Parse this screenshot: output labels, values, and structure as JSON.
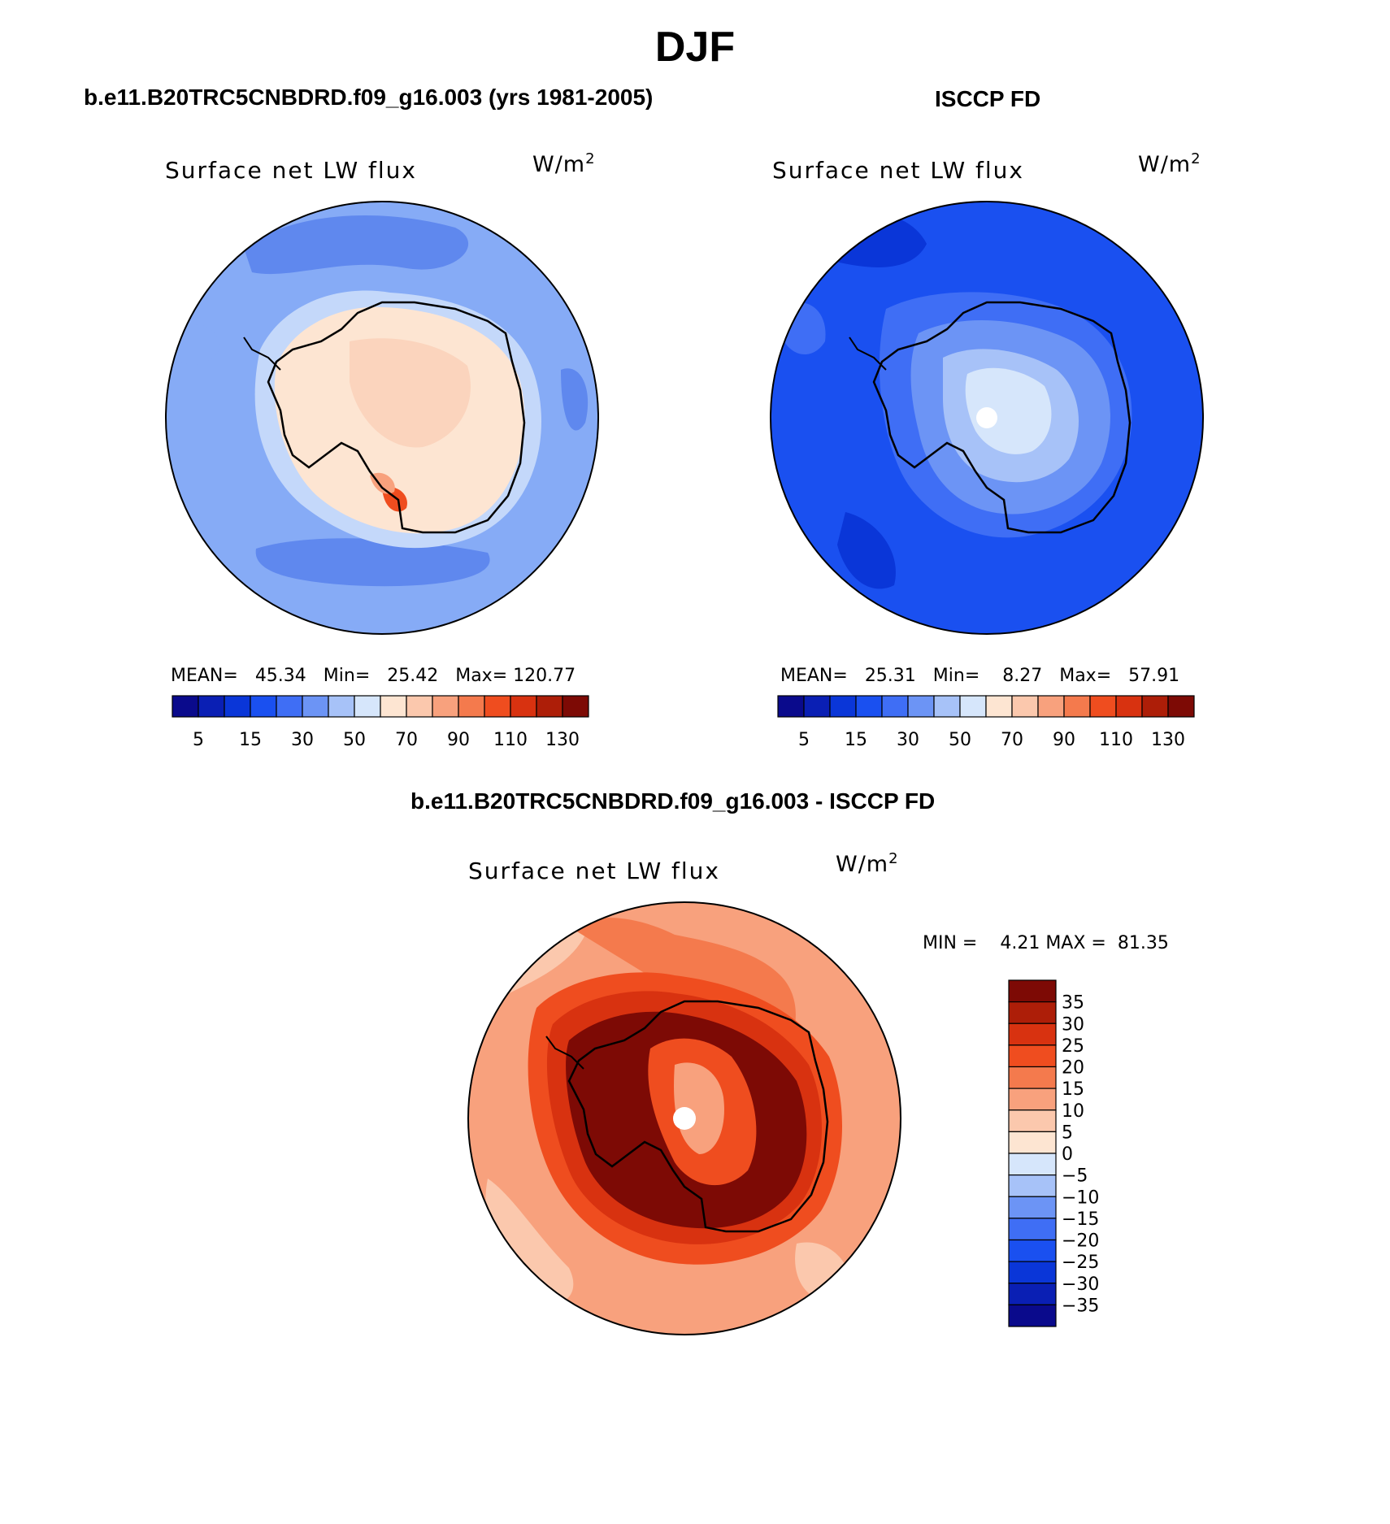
{
  "figure": {
    "title": "DJF",
    "panels": [
      {
        "heading": "b.e11.B20TRC5CNBDRD.f09_g16.003 (yrs 1981-2005)",
        "variable": "Surface net LW flux",
        "units": "W/m",
        "units_sup": "2",
        "stats": {
          "mean_label": "MEAN=",
          "mean": "45.34",
          "min_label": "Min=",
          "min": "25.42",
          "max_label": "Max=",
          "max": "120.77"
        }
      },
      {
        "heading": "ISCCP FD",
        "variable": "Surface net LW flux",
        "units": "W/m",
        "units_sup": "2",
        "stats": {
          "mean_label": "MEAN=",
          "mean": "25.31",
          "min_label": "Min=",
          "min": "8.27",
          "max_label": "Max=",
          "max": "57.91"
        }
      },
      {
        "heading": "b.e11.B20TRC5CNBDRD.f09_g16.003 - ISCCP FD",
        "variable": "Surface net LW flux",
        "units": "W/m",
        "units_sup": "2",
        "stats": {
          "min_label": "MIN =",
          "min": "4.21",
          "max_label": "MAX =",
          "max": "81.35"
        }
      }
    ],
    "colorbar_abs": {
      "colors": [
        "#0a0a8c",
        "#0a1fb4",
        "#0a36d8",
        "#1a50f0",
        "#3f6ef5",
        "#6c94f5",
        "#a7c2f8",
        "#d6e6fb",
        "#fde5d2",
        "#fbc8ad",
        "#f8a17d",
        "#f47a4d",
        "#ef4d1f",
        "#d83210",
        "#ad1e08",
        "#7d0a05"
      ],
      "tick_labels": [
        "5",
        "15",
        "30",
        "50",
        "70",
        "90",
        "110",
        "130"
      ]
    },
    "colorbar_diff": {
      "colors_top_to_bottom": [
        "#7d0a05",
        "#ad1e08",
        "#d83210",
        "#ef4d1f",
        "#f47a4d",
        "#f8a17d",
        "#fbc8ad",
        "#fde5d2",
        "#d6e6fb",
        "#a7c2f8",
        "#6c94f5",
        "#3f6ef5",
        "#1a50f0",
        "#0a36d8",
        "#0a1fb4",
        "#0a0a8c"
      ],
      "tick_labels": [
        "35",
        "30",
        "25",
        "20",
        "15",
        "10",
        "5",
        "0",
        "−5",
        "−10",
        "−15",
        "−20",
        "−25",
        "−30",
        "−35"
      ]
    }
  }
}
